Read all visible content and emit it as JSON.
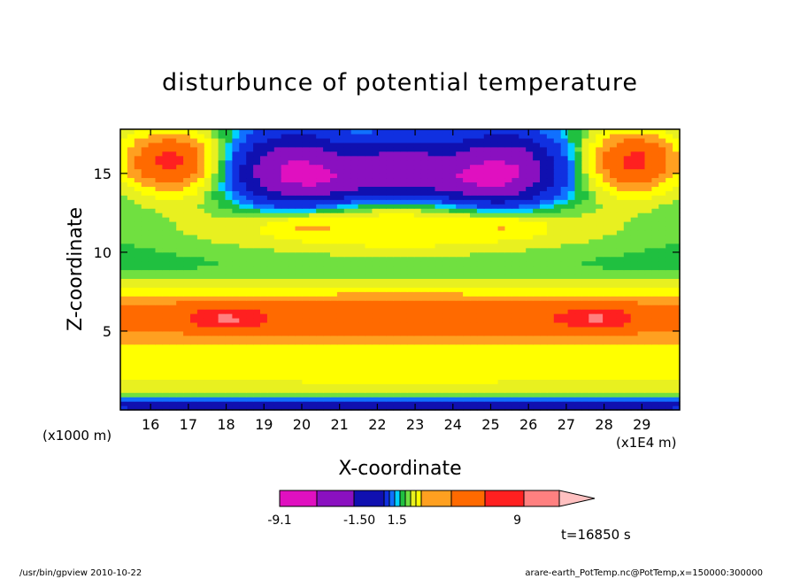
{
  "chart_data": {
    "type": "heatmap",
    "title": "disturbunce of potential temperature",
    "xlabel": "X-coordinate",
    "ylabel": "Z-coordinate",
    "x_unit_left": "(x1000 m)",
    "x_unit_right": "(x1E4 m)",
    "xlim": [
      15.2,
      30.0
    ],
    "ylim": [
      0,
      17.8
    ],
    "x_ticks": [
      "16",
      "17",
      "18",
      "19",
      "20",
      "21",
      "22",
      "23",
      "24",
      "25",
      "26",
      "27",
      "28",
      "29"
    ],
    "x_tick_values": [
      16,
      17,
      18,
      19,
      20,
      21,
      22,
      23,
      24,
      25,
      26,
      27,
      28,
      29
    ],
    "y_ticks": [
      "5",
      "10",
      "15"
    ],
    "y_tick_values": [
      5,
      10,
      15
    ],
    "time_label": "t=16850 s",
    "colorbar": {
      "colors": [
        "#e010c0",
        "#8a10c0",
        "#1010b0",
        "#1030e0",
        "#1070ff",
        "#00d0ff",
        "#20c040",
        "#70e040",
        "#e8f020",
        "#ffff00",
        "#ffa020",
        "#ff6a00",
        "#ff2020",
        "#ff8080",
        "#ffc0c0"
      ],
      "tick_labels": [
        "-9.1",
        "-1.50",
        "1.5",
        "9"
      ],
      "tick_fractions": [
        0.0,
        0.285,
        0.42,
        0.85
      ]
    },
    "anomalies": [
      {
        "x": 16.5,
        "z": 15.8,
        "value": 6.0,
        "sx": 0.9,
        "sz": 1.4
      },
      {
        "x": 28.8,
        "z": 15.8,
        "value": 6.0,
        "sx": 0.9,
        "sz": 1.4
      },
      {
        "x": 19.8,
        "z": 15.3,
        "value": -7.5,
        "sx": 1.1,
        "sz": 1.6
      },
      {
        "x": 25.3,
        "z": 15.3,
        "value": -7.5,
        "sx": 1.1,
        "sz": 1.6
      },
      {
        "x": 22.6,
        "z": 15.6,
        "value": -5.0,
        "sx": 0.9,
        "sz": 1.3
      },
      {
        "x": 21.0,
        "z": 14.6,
        "value": -3.0,
        "sx": 1.2,
        "sz": 0.9
      },
      {
        "x": 24.2,
        "z": 14.6,
        "value": -3.0,
        "sx": 1.2,
        "sz": 0.9
      },
      {
        "x": 22.6,
        "z": 11.6,
        "value": 2.5,
        "sx": 3.8,
        "sz": 1.2
      },
      {
        "x": 20.0,
        "z": 11.8,
        "value": 1.2,
        "sx": 0.7,
        "sz": 0.5
      },
      {
        "x": 25.4,
        "z": 11.8,
        "value": 1.2,
        "sx": 0.7,
        "sz": 0.5
      },
      {
        "x": 22.6,
        "z": 5.9,
        "value": 5.0,
        "sx": 20.0,
        "sz": 1.25
      },
      {
        "x": 18.0,
        "z": 5.8,
        "value": 3.0,
        "sx": 0.6,
        "sz": 0.5
      },
      {
        "x": 27.8,
        "z": 5.8,
        "value": 3.0,
        "sx": 0.6,
        "sz": 0.5
      },
      {
        "x": 22.6,
        "z": 2.3,
        "value": 1.6,
        "sx": 20.0,
        "sz": 1.3
      },
      {
        "x": 22.6,
        "z": 0.3,
        "value": -4.0,
        "sx": 20.0,
        "sz": 0.35
      }
    ]
  },
  "footer": {
    "left": "/usr/bin/gpview   2010-10-22",
    "right": "arare-earth_PotTemp.nc@PotTemp,x=150000:300000"
  }
}
